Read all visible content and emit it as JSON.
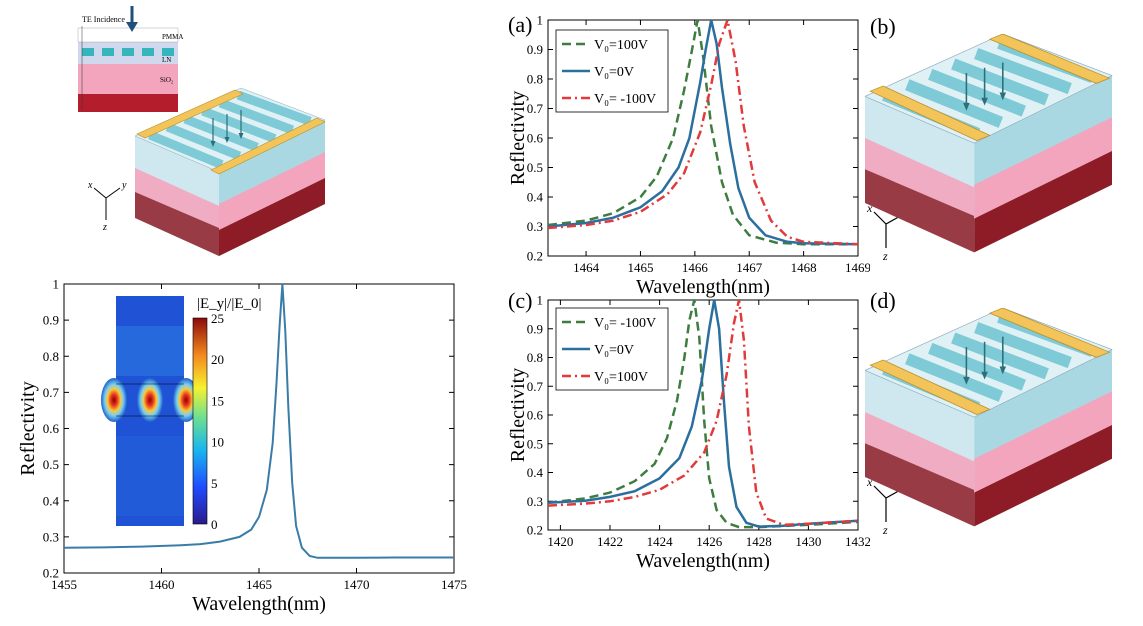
{
  "colors": {
    "green": "#3f7d3f",
    "blue": "#2b6f9e",
    "red": "#e23a3a",
    "main_curve": "#3a7ca8",
    "gold": "#f2c45a",
    "slab_top": "#a9d8e3",
    "slab_pink": "#f3a5bd",
    "slab_dark": "#8e1c26",
    "grating": "#7ecad6"
  },
  "icons": {
    "structure": "grating-waveguide-3d-icon",
    "axes": "xyz-axes-icon",
    "schematic": "cross-section-schematic-icon"
  },
  "schematic": {
    "incidence_label": "TE Incidence",
    "pmma_label": "PMMA",
    "ln_label": "LN",
    "sio2_label": "SiO₂"
  },
  "axes_labels": {
    "x": "x",
    "y": "y",
    "z": "z"
  },
  "panels": {
    "a": "(a)",
    "b": "(b)",
    "c": "(c)",
    "d": "(d)"
  },
  "chart_data": [
    {
      "id": "main",
      "type": "line",
      "xlabel": "Wavelength(nm)",
      "ylabel": "Reflectivity",
      "xlim": [
        1455,
        1475
      ],
      "ylim": [
        0.2,
        1.0
      ],
      "xticks": [
        1455,
        1460,
        1465,
        1470,
        1475
      ],
      "yticks": [
        0.2,
        0.3,
        0.4,
        0.5,
        0.6,
        0.7,
        0.8,
        0.9,
        1.0
      ],
      "series": [
        {
          "color": "#3a7ca8",
          "dash": "solid",
          "x": [
            1455,
            1457,
            1459,
            1461,
            1462,
            1463,
            1464,
            1464.6,
            1465,
            1465.4,
            1465.7,
            1465.9,
            1466.05,
            1466.2,
            1466.35,
            1466.5,
            1466.7,
            1466.9,
            1467.2,
            1467.6,
            1468,
            1469,
            1470,
            1472,
            1475
          ],
          "y": [
            0.27,
            0.271,
            0.273,
            0.277,
            0.28,
            0.287,
            0.3,
            0.32,
            0.355,
            0.43,
            0.56,
            0.73,
            0.88,
            1.0,
            0.87,
            0.66,
            0.45,
            0.33,
            0.27,
            0.247,
            0.242,
            0.242,
            0.242,
            0.243,
            0.243
          ]
        }
      ],
      "inset": {
        "title": "|E_y|/|E_0|",
        "colorbar_ticks": [
          0,
          5,
          10,
          15,
          20,
          25
        ]
      }
    },
    {
      "id": "a",
      "type": "line",
      "xlabel": "Wavelength(nm)",
      "ylabel": "Reflectivity",
      "xlim": [
        1463.3,
        1469
      ],
      "ylim": [
        0.2,
        1.0
      ],
      "xticks": [
        1464,
        1465,
        1466,
        1467,
        1468,
        1469
      ],
      "yticks": [
        0.2,
        0.3,
        0.4,
        0.5,
        0.6,
        0.7,
        0.8,
        0.9,
        1.0
      ],
      "legend": "top-left",
      "series": [
        {
          "name": "V₀=100V",
          "color": "#3f7d3f",
          "dash": "dashed",
          "x": [
            1463.3,
            1464,
            1464.5,
            1465,
            1465.3,
            1465.6,
            1465.8,
            1465.95,
            1466.05,
            1466.15,
            1466.3,
            1466.5,
            1466.7,
            1467,
            1467.5,
            1468,
            1469
          ],
          "y": [
            0.305,
            0.32,
            0.345,
            0.4,
            0.47,
            0.6,
            0.76,
            0.9,
            1.0,
            0.88,
            0.64,
            0.45,
            0.34,
            0.27,
            0.245,
            0.24,
            0.24
          ]
        },
        {
          "name": "V₀=0V",
          "color": "#2b6f9e",
          "dash": "solid",
          "x": [
            1463.3,
            1464,
            1464.5,
            1465,
            1465.4,
            1465.7,
            1465.9,
            1466.1,
            1466.2,
            1466.3,
            1466.4,
            1466.5,
            1466.65,
            1466.8,
            1467,
            1467.3,
            1467.7,
            1468,
            1469
          ],
          "y": [
            0.3,
            0.312,
            0.33,
            0.365,
            0.42,
            0.5,
            0.6,
            0.79,
            0.9,
            1.0,
            0.92,
            0.77,
            0.58,
            0.43,
            0.33,
            0.27,
            0.248,
            0.243,
            0.24
          ]
        },
        {
          "name": "V₀= -100V",
          "color": "#e23a3a",
          "dash": "dashdot",
          "x": [
            1463.3,
            1464,
            1464.5,
            1465,
            1465.5,
            1465.8,
            1466.1,
            1466.3,
            1466.45,
            1466.6,
            1466.75,
            1466.9,
            1467.1,
            1467.4,
            1467.7,
            1468,
            1469
          ],
          "y": [
            0.295,
            0.305,
            0.32,
            0.35,
            0.41,
            0.48,
            0.62,
            0.78,
            0.92,
            1.0,
            0.86,
            0.64,
            0.45,
            0.32,
            0.265,
            0.248,
            0.24
          ]
        }
      ]
    },
    {
      "id": "c",
      "type": "line",
      "xlabel": "Wavelength(nm)",
      "ylabel": "Reflectivity",
      "xlim": [
        1419.5,
        1432
      ],
      "ylim": [
        0.2,
        1.0
      ],
      "xticks": [
        1420,
        1422,
        1424,
        1426,
        1428,
        1430,
        1432
      ],
      "yticks": [
        0.2,
        0.3,
        0.4,
        0.5,
        0.6,
        0.7,
        0.8,
        0.9,
        1.0
      ],
      "legend": "top-left",
      "series": [
        {
          "name": "V₀= -100V",
          "color": "#3f7d3f",
          "dash": "dashed",
          "x": [
            1419.5,
            1421,
            1422,
            1423,
            1423.8,
            1424.3,
            1424.7,
            1425,
            1425.2,
            1425.4,
            1425.6,
            1425.8,
            1426,
            1426.3,
            1426.7,
            1427.2,
            1428,
            1430,
            1432
          ],
          "y": [
            0.295,
            0.31,
            0.33,
            0.37,
            0.43,
            0.52,
            0.65,
            0.8,
            0.93,
            1.0,
            0.87,
            0.58,
            0.38,
            0.27,
            0.225,
            0.21,
            0.21,
            0.218,
            0.228
          ]
        },
        {
          "name": "V₀=0V",
          "color": "#2b6f9e",
          "dash": "solid",
          "x": [
            1419.5,
            1421,
            1422,
            1423,
            1424,
            1424.8,
            1425.3,
            1425.7,
            1426,
            1426.2,
            1426.4,
            1426.6,
            1426.8,
            1427.1,
            1427.5,
            1428,
            1429,
            1430,
            1432
          ],
          "y": [
            0.295,
            0.302,
            0.315,
            0.335,
            0.38,
            0.45,
            0.56,
            0.72,
            0.9,
            1.0,
            0.9,
            0.64,
            0.42,
            0.28,
            0.225,
            0.212,
            0.215,
            0.222,
            0.232
          ]
        },
        {
          "name": "V₀=100V",
          "color": "#e23a3a",
          "dash": "dashdot",
          "x": [
            1419.5,
            1421,
            1422,
            1423,
            1424,
            1425,
            1425.8,
            1426.3,
            1426.7,
            1427,
            1427.2,
            1427.4,
            1427.6,
            1427.9,
            1428.3,
            1429,
            1430,
            1432
          ],
          "y": [
            0.285,
            0.292,
            0.3,
            0.315,
            0.34,
            0.39,
            0.47,
            0.58,
            0.74,
            0.92,
            1.0,
            0.86,
            0.56,
            0.33,
            0.24,
            0.218,
            0.222,
            0.232
          ]
        }
      ]
    }
  ]
}
